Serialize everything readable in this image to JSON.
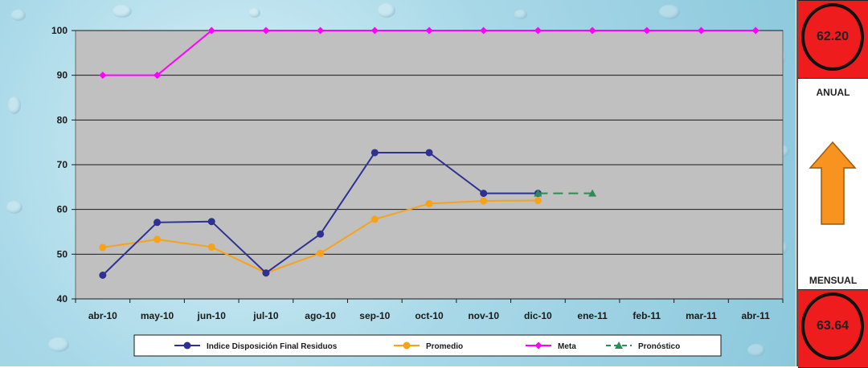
{
  "chart_data": {
    "type": "line",
    "title": "",
    "xlabel": "",
    "ylabel": "",
    "ylim": [
      40,
      100
    ],
    "yticks": [
      40,
      50,
      60,
      70,
      80,
      90,
      100
    ],
    "grid": true,
    "legend_position": "bottom",
    "categories": [
      "abr-10",
      "may-10",
      "jun-10",
      "jul-10",
      "ago-10",
      "sep-10",
      "oct-10",
      "nov-10",
      "dic-10",
      "ene-11",
      "feb-11",
      "mar-11",
      "abr-11"
    ],
    "series": [
      {
        "name": "Indice Disposición Final Residuos",
        "color": "#2e3192",
        "marker": "circle",
        "dash": "solid",
        "values": [
          45.3,
          57.1,
          57.3,
          45.8,
          54.5,
          72.7,
          72.7,
          63.6,
          63.6,
          null,
          null,
          null,
          null
        ]
      },
      {
        "name": "Promedio",
        "color": "#f7a21b",
        "marker": "circle",
        "dash": "solid",
        "values": [
          51.5,
          53.3,
          51.6,
          45.8,
          50.2,
          57.8,
          61.3,
          61.9,
          62.0,
          null,
          null,
          null,
          null
        ]
      },
      {
        "name": "Meta",
        "color": "#ff00ff",
        "marker": "diamond",
        "dash": "solid",
        "values": [
          90,
          90,
          100,
          100,
          100,
          100,
          100,
          100,
          100,
          100,
          100,
          100,
          100
        ]
      },
      {
        "name": "Pronóstico",
        "color": "#2e8b57",
        "marker": "triangle",
        "dash": "dashed",
        "values": [
          null,
          null,
          null,
          null,
          null,
          null,
          null,
          null,
          63.6,
          63.6,
          null,
          null,
          null
        ]
      }
    ]
  },
  "kpi": {
    "annual_value": "62.20",
    "annual_label": "ANUAL",
    "monthly_label": "MENSUAL",
    "monthly_value": "63.64",
    "trend": "up",
    "box_color": "#ee1c1c",
    "arrow_color": "#f7931e"
  }
}
